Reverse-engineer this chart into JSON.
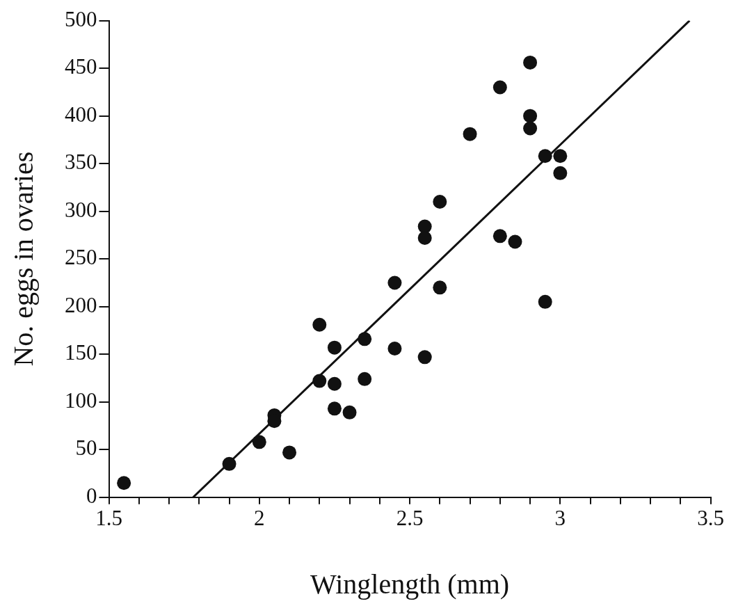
{
  "chart_data": {
    "type": "scatter",
    "xlabel": "Winglength (mm)",
    "ylabel": "No. eggs in ovaries",
    "xlim": [
      1.5,
      3.5
    ],
    "ylim": [
      0,
      500
    ],
    "xticks": [
      1.5,
      {
        "value": 1.6,
        "label": null
      },
      {
        "value": 1.7,
        "label": null
      },
      {
        "value": 1.8,
        "label": null
      },
      {
        "value": 1.9,
        "label": null
      },
      2,
      {
        "value": 2.1,
        "label": null
      },
      {
        "value": 2.2,
        "label": null
      },
      {
        "value": 2.3,
        "label": null
      },
      {
        "value": 2.4,
        "label": null
      },
      2.5,
      {
        "value": 2.6,
        "label": null
      },
      {
        "value": 2.7,
        "label": null
      },
      {
        "value": 2.8,
        "label": null
      },
      {
        "value": 2.9,
        "label": null
      },
      3,
      {
        "value": 3.1,
        "label": null
      },
      {
        "value": 3.2,
        "label": null
      },
      {
        "value": 3.3,
        "label": null
      },
      {
        "value": 3.4,
        "label": null
      },
      3.5
    ],
    "yticks": [
      0,
      50,
      100,
      150,
      200,
      250,
      300,
      350,
      400,
      450,
      500
    ],
    "marker": "circle",
    "series": [
      {
        "color": "#111111",
        "x": [
          1.55,
          1.9,
          2.0,
          2.05,
          2.05,
          2.1,
          2.2,
          2.2,
          2.25,
          2.25,
          2.25,
          2.3,
          2.35,
          2.35,
          2.45,
          2.45,
          2.55,
          2.55,
          2.55,
          2.6,
          2.6,
          2.7,
          2.8,
          2.8,
          2.85,
          2.9,
          2.9,
          2.9,
          2.95,
          2.95,
          3.0,
          3.0
        ],
        "values": [
          15,
          35,
          58,
          86,
          80,
          47,
          181,
          122,
          157,
          119,
          93,
          89,
          166,
          124,
          156,
          225,
          284,
          272,
          147,
          310,
          220,
          381,
          430,
          274,
          268,
          456,
          400,
          387,
          358,
          205,
          358,
          340
        ]
      },
      {
        "type": "line",
        "color": "#111111",
        "marker": "none",
        "x": [
          1.78,
          3.43
        ],
        "values": [
          0,
          500
        ]
      }
    ]
  }
}
